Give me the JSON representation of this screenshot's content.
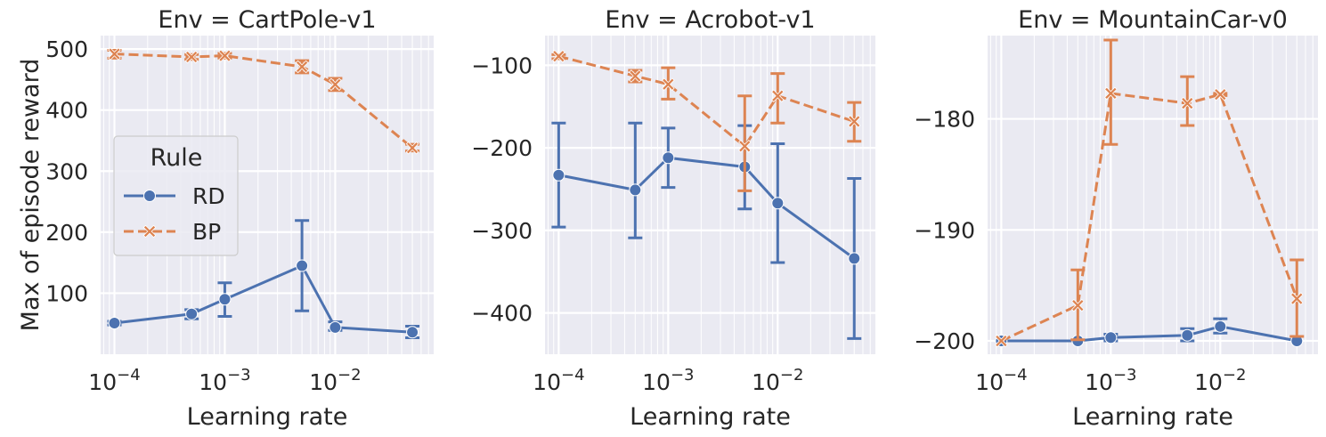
{
  "figure": {
    "ylabel": "Max of episode reward",
    "legend": {
      "title": "Rule",
      "placement": "center-left of first panel",
      "entries": [
        {
          "name": "RD",
          "color": "#4c72b0",
          "marker": "circle",
          "dash": "solid"
        },
        {
          "name": "BP",
          "color": "#dd8452",
          "marker": "x",
          "dash": "dashed"
        }
      ]
    },
    "colors": {
      "background": "#eaeaf2",
      "grid": "#ffffff",
      "RD": "#4c72b0",
      "BP": "#dd8452"
    }
  },
  "chart_data": [
    {
      "type": "line",
      "title": "Env = CartPole-v1",
      "xlabel": "Learning rate",
      "xscale": "log",
      "xlim": [
        7.5e-05,
        0.078
      ],
      "ylim": [
        0,
        522
      ],
      "yticks": [
        100,
        200,
        300,
        400,
        500
      ],
      "ytick_labels": [
        "100",
        "200",
        "300",
        "400",
        "500"
      ],
      "xticks": [
        0.0001,
        0.001,
        0.01
      ],
      "xtick_labels": [
        {
          "base": "10",
          "exp": "−4"
        },
        {
          "base": "10",
          "exp": "−3"
        },
        {
          "base": "10",
          "exp": "−2"
        }
      ],
      "grid": true,
      "x": [
        0.0001,
        0.0005,
        0.001,
        0.005,
        0.01,
        0.05
      ],
      "series": [
        {
          "name": "RD",
          "values": [
            51,
            66,
            90,
            145,
            44,
            36
          ],
          "err_low": [
            48,
            58,
            62,
            71,
            39,
            27
          ],
          "err_high": [
            54,
            73,
            117,
            219,
            53,
            46
          ]
        },
        {
          "name": "BP",
          "values": [
            492,
            487,
            489,
            471,
            442,
            338
          ],
          "err_low": [
            485,
            483,
            485,
            461,
            432,
            333
          ],
          "err_high": [
            498,
            491,
            493,
            481,
            452,
            344
          ]
        }
      ]
    },
    {
      "type": "line",
      "title": "Env = Acrobot-v1",
      "xlabel": "Learning rate",
      "xscale": "log",
      "xlim": [
        7.5e-05,
        0.078
      ],
      "ylim": [
        -450,
        -64
      ],
      "yticks": [
        -400,
        -300,
        -200,
        -100
      ],
      "ytick_labels": [
        "−400",
        "−300",
        "−200",
        "−100"
      ],
      "xticks": [
        0.0001,
        0.001,
        0.01
      ],
      "xtick_labels": [
        {
          "base": "10",
          "exp": "−4"
        },
        {
          "base": "10",
          "exp": "−3"
        },
        {
          "base": "10",
          "exp": "−2"
        }
      ],
      "grid": true,
      "x": [
        0.0001,
        0.0005,
        0.001,
        0.005,
        0.01,
        0.05
      ],
      "series": [
        {
          "name": "RD",
          "values": [
            -233,
            -251,
            -212,
            -223,
            -267,
            -334
          ],
          "err_low": [
            -296,
            -309,
            -248,
            -274,
            -339,
            -431
          ],
          "err_high": [
            -170,
            -170,
            -176,
            -173,
            -195,
            -237
          ]
        },
        {
          "name": "BP",
          "values": [
            -89,
            -113,
            -123,
            -198,
            -137,
            -168
          ],
          "err_low": [
            -92,
            -120,
            -141,
            -252,
            -170,
            -192
          ],
          "err_high": [
            -87,
            -106,
            -103,
            -137,
            -110,
            -145
          ]
        }
      ]
    },
    {
      "type": "line",
      "title": "Env = MountainCar-v0",
      "xlabel": "Learning rate",
      "xscale": "log",
      "xlim": [
        7.5e-05,
        0.078
      ],
      "ylim": [
        -201.2,
        -172.5
      ],
      "yticks": [
        -200,
        -190,
        -180
      ],
      "ytick_labels": [
        "−200",
        "−190",
        "−180"
      ],
      "xticks": [
        0.0001,
        0.001,
        0.01
      ],
      "xtick_labels": [
        {
          "base": "10",
          "exp": "−4"
        },
        {
          "base": "10",
          "exp": "−3"
        },
        {
          "base": "10",
          "exp": "−2"
        }
      ],
      "grid": true,
      "x": [
        0.0001,
        0.0005,
        0.001,
        0.005,
        0.01,
        0.05
      ],
      "series": [
        {
          "name": "RD",
          "values": [
            -200,
            -200,
            -199.7,
            -199.5,
            -198.7,
            -200
          ],
          "err_low": [
            -200,
            -200,
            -200,
            -200,
            -199.3,
            -200
          ],
          "err_high": [
            -200,
            -200,
            -199.4,
            -198.9,
            -198.0,
            -200
          ]
        },
        {
          "name": "BP",
          "values": [
            -200,
            -196.8,
            -177.7,
            -178.6,
            -177.8,
            -196.2
          ],
          "err_low": [
            -200,
            -199.9,
            -182.3,
            -180.6,
            -177.9,
            -199.6
          ],
          "err_high": [
            -200,
            -193.6,
            -172.9,
            -176.2,
            -177.7,
            -192.7
          ]
        }
      ]
    }
  ]
}
